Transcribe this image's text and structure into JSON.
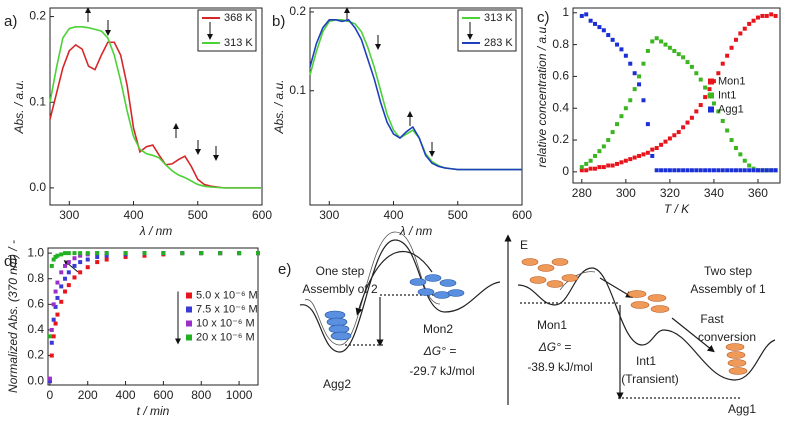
{
  "chart_data": [
    {
      "type": "line",
      "label": "a)",
      "xlabel": "λ / nm",
      "ylabel": "Abs. / a.u.",
      "x": [
        270,
        280,
        290,
        300,
        310,
        320,
        330,
        340,
        350,
        360,
        370,
        380,
        390,
        400,
        410,
        420,
        430,
        440,
        450,
        460,
        470,
        480,
        490,
        500,
        510,
        520,
        540,
        560,
        580,
        600
      ],
      "series": [
        {
          "name": "368 K",
          "color": "#d62728",
          "values": [
            0.08,
            0.11,
            0.14,
            0.16,
            0.167,
            0.162,
            0.142,
            0.138,
            0.155,
            0.17,
            0.17,
            0.155,
            0.12,
            0.07,
            0.042,
            0.048,
            0.05,
            0.038,
            0.027,
            0.028,
            0.033,
            0.037,
            0.025,
            0.01,
            0.004,
            0.002,
            0,
            0,
            0,
            0
          ]
        },
        {
          "name": "313 K",
          "color": "#4cd137",
          "values": [
            0.1,
            0.14,
            0.175,
            0.186,
            0.188,
            0.188,
            0.187,
            0.185,
            0.183,
            0.175,
            0.155,
            0.125,
            0.09,
            0.06,
            0.045,
            0.04,
            0.038,
            0.035,
            0.027,
            0.02,
            0.015,
            0.012,
            0.008,
            0.004,
            0.002,
            0.001,
            0,
            0,
            0,
            0
          ]
        }
      ],
      "xlim": [
        270,
        600
      ],
      "xticks": [
        300,
        400,
        500,
        600
      ],
      "ylim": [
        -0.02,
        0.21
      ],
      "yticks": [
        {
          "value": 0,
          "label": "0.0"
        },
        0.1,
        0.2
      ],
      "legend": "upper right"
    },
    {
      "type": "line",
      "label": "b)",
      "xlabel": "λ / nm",
      "ylabel": "Abs. / a.u.",
      "x": [
        270,
        280,
        290,
        300,
        310,
        320,
        330,
        340,
        350,
        360,
        370,
        380,
        390,
        400,
        410,
        420,
        430,
        440,
        450,
        460,
        470,
        480,
        490,
        500,
        510,
        520,
        540,
        560,
        580,
        600
      ],
      "series": [
        {
          "name": "313 K",
          "color": "#4cd137",
          "values": [
            0.12,
            0.15,
            0.175,
            0.188,
            0.19,
            0.19,
            0.188,
            0.185,
            0.175,
            0.155,
            0.13,
            0.1,
            0.07,
            0.05,
            0.04,
            0.045,
            0.05,
            0.04,
            0.02,
            0.01,
            0.005,
            0.002,
            0.001,
            0,
            0,
            0,
            0,
            0,
            0,
            0
          ]
        },
        {
          "name": "283 K",
          "color": "#1f3fbf",
          "values": [
            0.13,
            0.16,
            0.18,
            0.19,
            0.19,
            0.188,
            0.19,
            0.18,
            0.165,
            0.14,
            0.115,
            0.085,
            0.06,
            0.045,
            0.04,
            0.048,
            0.054,
            0.04,
            0.018,
            0.008,
            0.004,
            0.002,
            0.001,
            0,
            0,
            0,
            0,
            0,
            0,
            0
          ]
        }
      ],
      "xlim": [
        270,
        600
      ],
      "xticks": [
        300,
        400,
        500,
        600
      ],
      "ylim": [
        -0.045,
        0.205
      ],
      "yticks": [
        0.1,
        0.2
      ],
      "legend": "upper right"
    },
    {
      "type": "scatter",
      "label": "c)",
      "xlabel": "T / K",
      "ylabel": "relative concentration / a.u.",
      "x": [
        280,
        282,
        284,
        286,
        288,
        290,
        292,
        294,
        296,
        298,
        300,
        302,
        304,
        306,
        308,
        310,
        312,
        314,
        316,
        318,
        320,
        322,
        324,
        326,
        328,
        330,
        332,
        334,
        336,
        338,
        340,
        342,
        344,
        346,
        348,
        350,
        352,
        354,
        356,
        358,
        360,
        362,
        364,
        366,
        368
      ],
      "series": [
        {
          "name": "Mon1",
          "color": "#e8141c",
          "values": [
            0.01,
            0.01,
            0.02,
            0.02,
            0.03,
            0.03,
            0.04,
            0.04,
            0.05,
            0.06,
            0.07,
            0.08,
            0.09,
            0.1,
            0.11,
            0.12,
            0.14,
            0.15,
            0.17,
            0.19,
            0.21,
            0.23,
            0.25,
            0.28,
            0.31,
            0.34,
            0.38,
            0.42,
            0.47,
            0.52,
            0.57,
            0.62,
            0.68,
            0.73,
            0.78,
            0.83,
            0.87,
            0.9,
            0.93,
            0.95,
            0.97,
            0.98,
            0.98,
            0.99,
            0.98
          ]
        },
        {
          "name": "Int1",
          "color": "#3cb521",
          "values": [
            0.03,
            0.05,
            0.07,
            0.1,
            0.13,
            0.16,
            0.2,
            0.25,
            0.3,
            0.35,
            0.4,
            0.45,
            0.52,
            0.6,
            0.68,
            0.76,
            0.82,
            0.84,
            0.82,
            0.8,
            0.78,
            0.76,
            0.74,
            0.72,
            0.69,
            0.66,
            0.62,
            0.58,
            0.53,
            0.48,
            0.43,
            0.38,
            0.32,
            0.26,
            0.2,
            0.15,
            0.11,
            0.07,
            0.04,
            0.02,
            0.01,
            0.01,
            0.01,
            0.01,
            0.01
          ]
        },
        {
          "name": "Agg1",
          "color": "#1a2fd6",
          "values": [
            0.98,
            0.99,
            0.95,
            0.93,
            0.91,
            0.89,
            0.86,
            0.83,
            0.8,
            0.77,
            0.73,
            0.68,
            0.62,
            0.55,
            0.45,
            0.3,
            0.1,
            0.01,
            0.01,
            0.01,
            0.01,
            0.01,
            0.01,
            0.01,
            0.01,
            0.01,
            0.01,
            0.01,
            0.01,
            0.01,
            0.01,
            0.01,
            0.01,
            0.01,
            0.01,
            0.01,
            0.01,
            0.01,
            0.01,
            0.01,
            0.01,
            0.01,
            0.01,
            0.01,
            0.01
          ]
        }
      ],
      "xlim": [
        276,
        370
      ],
      "xticks": [
        280,
        300,
        320,
        340,
        360
      ],
      "ylim": [
        -0.07,
        1.03
      ],
      "yticks": [
        0,
        0.2,
        0.4,
        0.6,
        0.8,
        1
      ],
      "legend": "center right"
    },
    {
      "type": "scatter",
      "label": "d)",
      "xlabel": "t / min",
      "ylabel": "Normalized Abs. (370 nm) / -",
      "x": [
        0,
        10,
        20,
        30,
        40,
        60,
        80,
        100,
        130,
        160,
        200,
        250,
        300,
        400,
        500,
        600,
        700,
        800,
        900,
        1000,
        1100
      ],
      "series": [
        {
          "name": "5.0 x 10⁻⁶ M",
          "color": "#e8141c",
          "values": [
            0,
            0.2,
            0.35,
            0.45,
            0.52,
            0.62,
            0.7,
            0.75,
            0.81,
            0.85,
            0.89,
            0.93,
            0.95,
            0.97,
            0.98,
            0.99,
            1,
            1,
            1,
            1,
            1
          ]
        },
        {
          "name": "7.5 x 10⁻⁶ M",
          "color": "#3a3ad8",
          "values": [
            0,
            0.3,
            0.48,
            0.58,
            0.65,
            0.74,
            0.8,
            0.85,
            0.9,
            0.93,
            0.95,
            0.97,
            0.98,
            0.99,
            1,
            1,
            1,
            1,
            1,
            1,
            1
          ]
        },
        {
          "name": "10 x 10⁻⁶ M",
          "color": "#9b30c8",
          "values": [
            0.02,
            0.4,
            0.6,
            0.7,
            0.77,
            0.85,
            0.9,
            0.93,
            0.96,
            0.98,
            0.99,
            1,
            1,
            1,
            1,
            1,
            1,
            1,
            1,
            1,
            1
          ]
        },
        {
          "name": "20 x 10⁻⁶ M",
          "color": "#22b022",
          "values": [
            0.35,
            0.9,
            0.95,
            0.97,
            0.98,
            0.99,
            1,
            1,
            1,
            1,
            1,
            1,
            1,
            1,
            1,
            1,
            1,
            1,
            1,
            1,
            1
          ]
        }
      ],
      "xlim": [
        -10,
        1100
      ],
      "xticks": [
        0,
        200,
        400,
        600,
        800,
        1000
      ],
      "ylim": [
        -0.03,
        1.04
      ],
      "yticks": [
        {
          "value": 0,
          "label": "0.0"
        },
        0.2,
        0.4,
        0.6,
        0.8,
        {
          "value": 1,
          "label": "1.0"
        }
      ],
      "legend": "center right"
    }
  ],
  "diagram": {
    "label": "e)",
    "left": {
      "title1": "One step",
      "title2": "Assembly of 2",
      "mon": "Mon2",
      "agg": "Agg2",
      "dg": "ΔG° =",
      "dgv": "-29.7 kJ/mol"
    },
    "axis": "E",
    "right": {
      "title1": "Two step",
      "title2": "Assembly of 1",
      "mon": "Mon1",
      "dg": "ΔG° =",
      "dgv": "-38.9 kJ/mol",
      "fast1": "Fast",
      "fast2": "conversion",
      "int": "Int1",
      "int2": "(Transient)",
      "agg": "Agg1"
    }
  }
}
